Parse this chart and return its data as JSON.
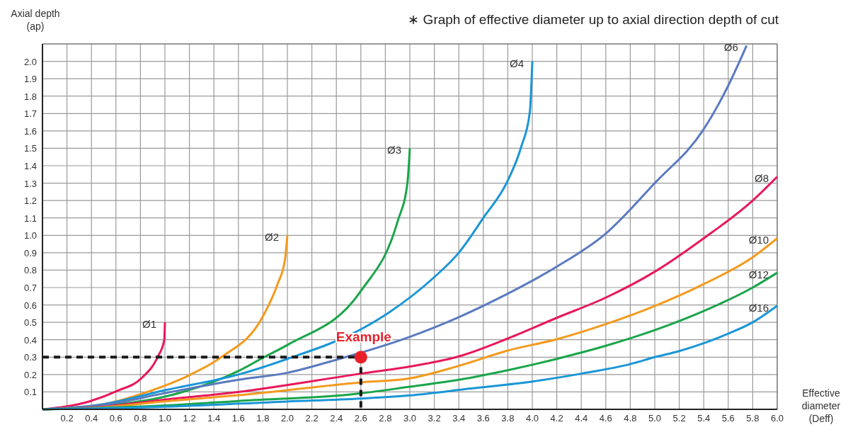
{
  "chart_data": {
    "type": "line",
    "title": "∗ Graph of effective diameter up to axial direction depth of cut",
    "xlabel": "Effective diameter (Deff)",
    "ylabel": "Axial depth (ap)",
    "xlim": [
      0,
      6
    ],
    "ylim": [
      0,
      2.1
    ],
    "xticks": [
      0.2,
      0.4,
      0.6,
      0.8,
      {
        "value": 1,
        "label": "1.0"
      },
      1.2,
      1.4,
      1.6,
      1.8,
      {
        "value": 2,
        "label": "2.0"
      },
      2.2,
      2.4,
      2.6,
      2.8,
      {
        "value": 3,
        "label": "3.0"
      },
      3.2,
      3.4,
      3.6,
      3.8,
      {
        "value": 4,
        "label": "4.0"
      },
      4.2,
      4.4,
      4.6,
      4.8,
      {
        "value": 5,
        "label": "5.0"
      },
      5.2,
      5.4,
      5.6,
      5.8,
      {
        "value": 6,
        "label": "6.0"
      }
    ],
    "yticks": [
      0.1,
      0.2,
      0.3,
      0.4,
      0.5,
      0.6,
      0.7,
      0.8,
      0.9,
      {
        "value": 1,
        "label": "1.0"
      },
      1.1,
      1.2,
      1.3,
      1.4,
      1.5,
      1.6,
      1.7,
      1.8,
      1.9,
      {
        "value": 2,
        "label": "2.0"
      }
    ],
    "grid": true,
    "marker": "none",
    "series": [
      {
        "name": "Ø1",
        "color": "#e8185a",
        "x": [
          0,
          0.385,
          0.615,
          0.81,
          0.94,
          0.995,
          1.0
        ],
        "values": [
          0,
          0.046,
          0.107,
          0.18,
          0.3,
          0.4,
          0.5
        ]
      },
      {
        "name": "Ø2",
        "color": "#f39a1e",
        "x": [
          0,
          0.5,
          0.8,
          1.21,
          1.46,
          1.8,
          1.92,
          1.98,
          2.0
        ],
        "values": [
          0,
          0.03,
          0.087,
          0.2,
          0.3,
          0.534,
          0.72,
          0.86,
          1.0
        ]
      },
      {
        "name": "Ø3",
        "color": "#1aa54a",
        "x": [
          0,
          0.5,
          1.0,
          1.6,
          1.81,
          2.0,
          2.6,
          2.9,
          2.98,
          3.0
        ],
        "values": [
          0,
          0.02,
          0.073,
          0.22,
          0.3,
          0.37,
          0.68,
          1.08,
          1.3,
          1.5
        ]
      },
      {
        "name": "Ø4",
        "color": "#1a96d6",
        "x": [
          0,
          0.5,
          1.0,
          1.6,
          2.0,
          2.6,
          2.83,
          3.2,
          3.4,
          3.6,
          3.8,
          3.91,
          3.98,
          4.0
        ],
        "values": [
          0,
          0.03,
          0.11,
          0.2,
          0.29,
          0.46,
          0.557,
          0.76,
          0.9,
          1.1,
          1.315,
          1.51,
          1.71,
          2.0
        ]
      },
      {
        "name": "Ø6",
        "color": "#5a7abf",
        "x": [
          0,
          0.5,
          1.0,
          1.6,
          2.0,
          2.4,
          3.0,
          3.4,
          3.8,
          4.2,
          4.6,
          5.0,
          5.4,
          5.6,
          5.75
        ],
        "values": [
          0,
          0.025,
          0.093,
          0.17,
          0.21,
          0.285,
          0.417,
          0.53,
          0.665,
          0.82,
          1.01,
          1.3,
          1.61,
          1.86,
          2.09
        ]
      },
      {
        "name": "Ø8",
        "color": "#e8185a",
        "x": [
          0,
          0.5,
          1.0,
          1.6,
          2.6,
          3.0,
          3.4,
          3.8,
          4.2,
          4.6,
          5.0,
          5.4,
          5.8,
          6.0
        ],
        "values": [
          0,
          0.015,
          0.056,
          0.1,
          0.205,
          0.246,
          0.304,
          0.407,
          0.526,
          0.642,
          0.791,
          0.983,
          1.2,
          1.337
        ]
      },
      {
        "name": "Ø10",
        "color": "#f39a1e",
        "x": [
          0,
          0.5,
          1.0,
          1.6,
          2.6,
          3.0,
          3.4,
          3.8,
          4.2,
          4.6,
          5.0,
          5.4,
          5.8,
          6.0
        ],
        "values": [
          0,
          0.012,
          0.046,
          0.081,
          0.155,
          0.178,
          0.25,
          0.338,
          0.403,
          0.49,
          0.594,
          0.72,
          0.874,
          0.983
        ]
      },
      {
        "name": "Ø12",
        "color": "#1aa54a",
        "x": [
          0,
          1.0,
          1.6,
          2.6,
          3.0,
          3.4,
          3.8,
          4.2,
          4.6,
          5.0,
          5.4,
          5.8,
          6.0
        ],
        "values": [
          0,
          0.022,
          0.048,
          0.092,
          0.13,
          0.17,
          0.225,
          0.29,
          0.365,
          0.455,
          0.565,
          0.7,
          0.785
        ]
      },
      {
        "name": "Ø16",
        "color": "#1a96d6",
        "x": [
          0,
          1.0,
          2.0,
          2.6,
          3.0,
          3.5,
          4.0,
          4.4,
          4.8,
          5.0,
          5.2,
          5.4,
          5.6,
          5.8,
          6.0
        ],
        "values": [
          0,
          0.015,
          0.045,
          0.062,
          0.08,
          0.12,
          0.16,
          0.205,
          0.26,
          0.3,
          0.335,
          0.38,
          0.435,
          0.5,
          0.595
        ]
      },
      {
        "type": "line",
        "color": "#1a1a1a",
        "line_style": "dashed",
        "x": [
          0,
          2.6,
          2.6
        ],
        "values": [
          0.3,
          0.3,
          0
        ]
      },
      {
        "type": "scatter",
        "name": "Example",
        "color": "#e8202a",
        "marker": "circle",
        "x": [
          2.6
        ],
        "values": [
          0.3
        ]
      }
    ]
  }
}
